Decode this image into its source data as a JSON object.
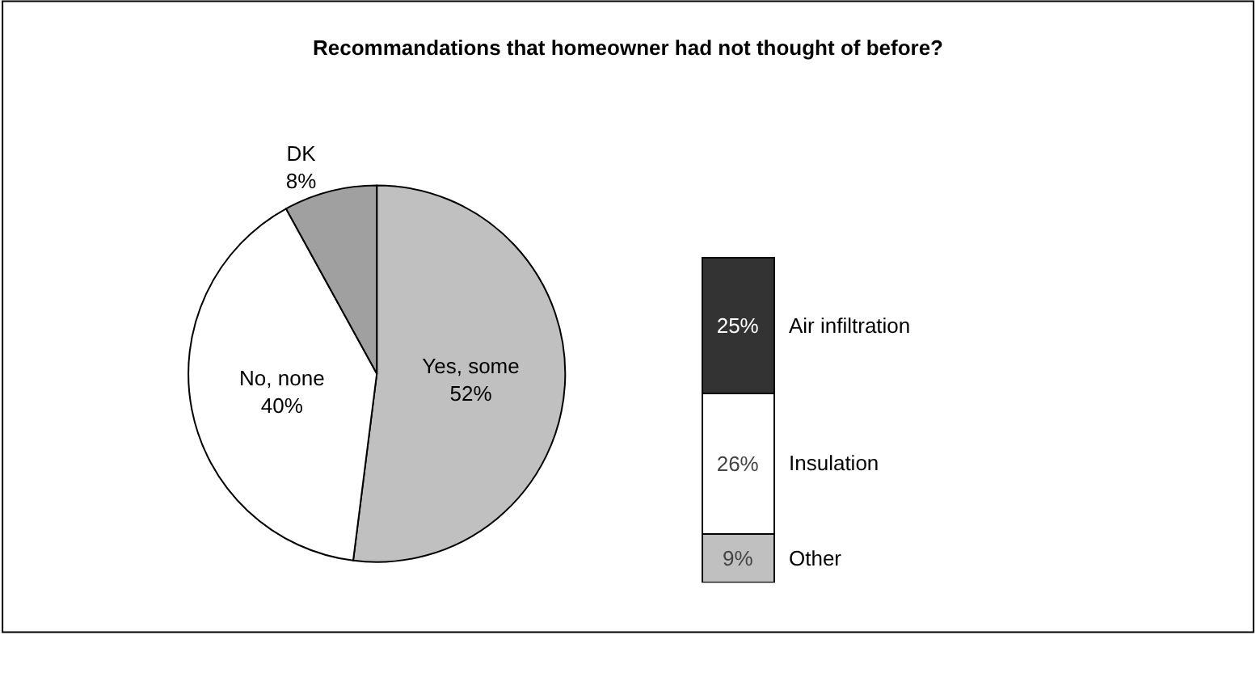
{
  "chart_data": [
    {
      "type": "pie",
      "title": "Recommandations that homeowner had not thought of before?",
      "categories": [
        "Yes, some",
        "No, none",
        "DK"
      ],
      "values": [
        52,
        40,
        8
      ],
      "colors": [
        "#c0c0c0",
        "#ffffff",
        "#a0a0a0"
      ],
      "value_labels": [
        "52%",
        "40%",
        "8%"
      ]
    },
    {
      "type": "bar",
      "stacked": true,
      "categories": [
        null
      ],
      "series": [
        {
          "name": "Other",
          "color": "#c0c0c0",
          "values": [
            9
          ],
          "value_labels": [
            "9%"
          ]
        },
        {
          "name": "Insulation",
          "color": "#ffffff",
          "values": [
            26
          ],
          "value_labels": [
            "26%"
          ]
        },
        {
          "name": "Air infiltration",
          "color": "#333333",
          "values": [
            25
          ],
          "value_labels": [
            "25%"
          ]
        }
      ]
    }
  ]
}
